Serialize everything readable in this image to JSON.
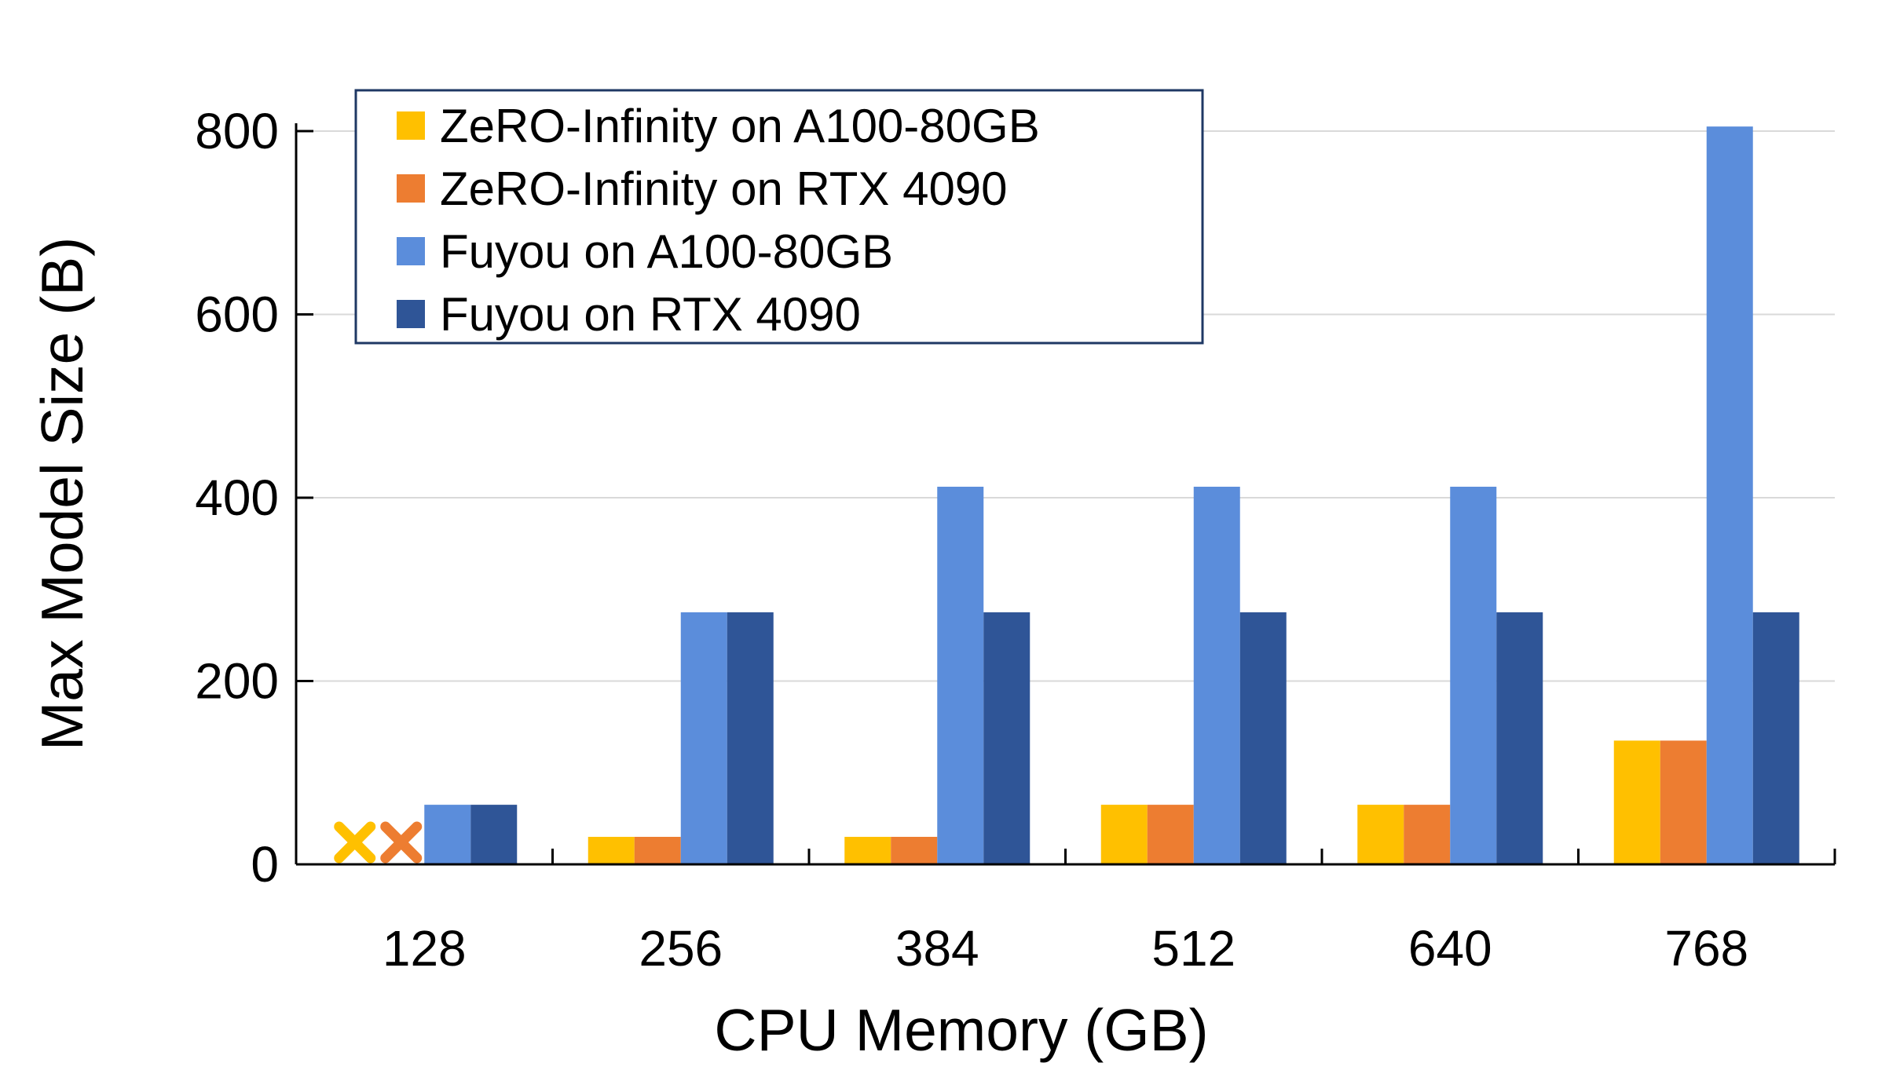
{
  "chart_data": {
    "type": "bar",
    "xlabel": "CPU Memory (GB)",
    "ylabel": "Max Model Size (B)",
    "categories": [
      "128",
      "256",
      "384",
      "512",
      "640",
      "768"
    ],
    "ylim": [
      0,
      800
    ],
    "yticks": [
      0,
      200,
      400,
      600,
      800
    ],
    "grid": true,
    "legend_position": "top-left",
    "series": [
      {
        "name": "ZeRO-Infinity on A100-80GB",
        "color": "#ffc000",
        "values": [
          null,
          30,
          30,
          65,
          65,
          135
        ]
      },
      {
        "name": "ZeRO-Infinity on RTX 4090",
        "color": "#ed7d31",
        "values": [
          null,
          30,
          30,
          65,
          65,
          135
        ]
      },
      {
        "name": "Fuyou on A100-80GB",
        "color": "#5b8ddb",
        "values": [
          65,
          275,
          412,
          412,
          412,
          805
        ]
      },
      {
        "name": "Fuyou on RTX 4090",
        "color": "#2f5597",
        "values": [
          65,
          275,
          275,
          275,
          275,
          275
        ]
      }
    ],
    "annotations": [
      {
        "marker": "x",
        "category": "128",
        "series": "ZeRO-Infinity on A100-80GB",
        "meaning": "not supported"
      },
      {
        "marker": "x",
        "category": "128",
        "series": "ZeRO-Infinity on RTX 4090",
        "meaning": "not supported"
      }
    ]
  }
}
